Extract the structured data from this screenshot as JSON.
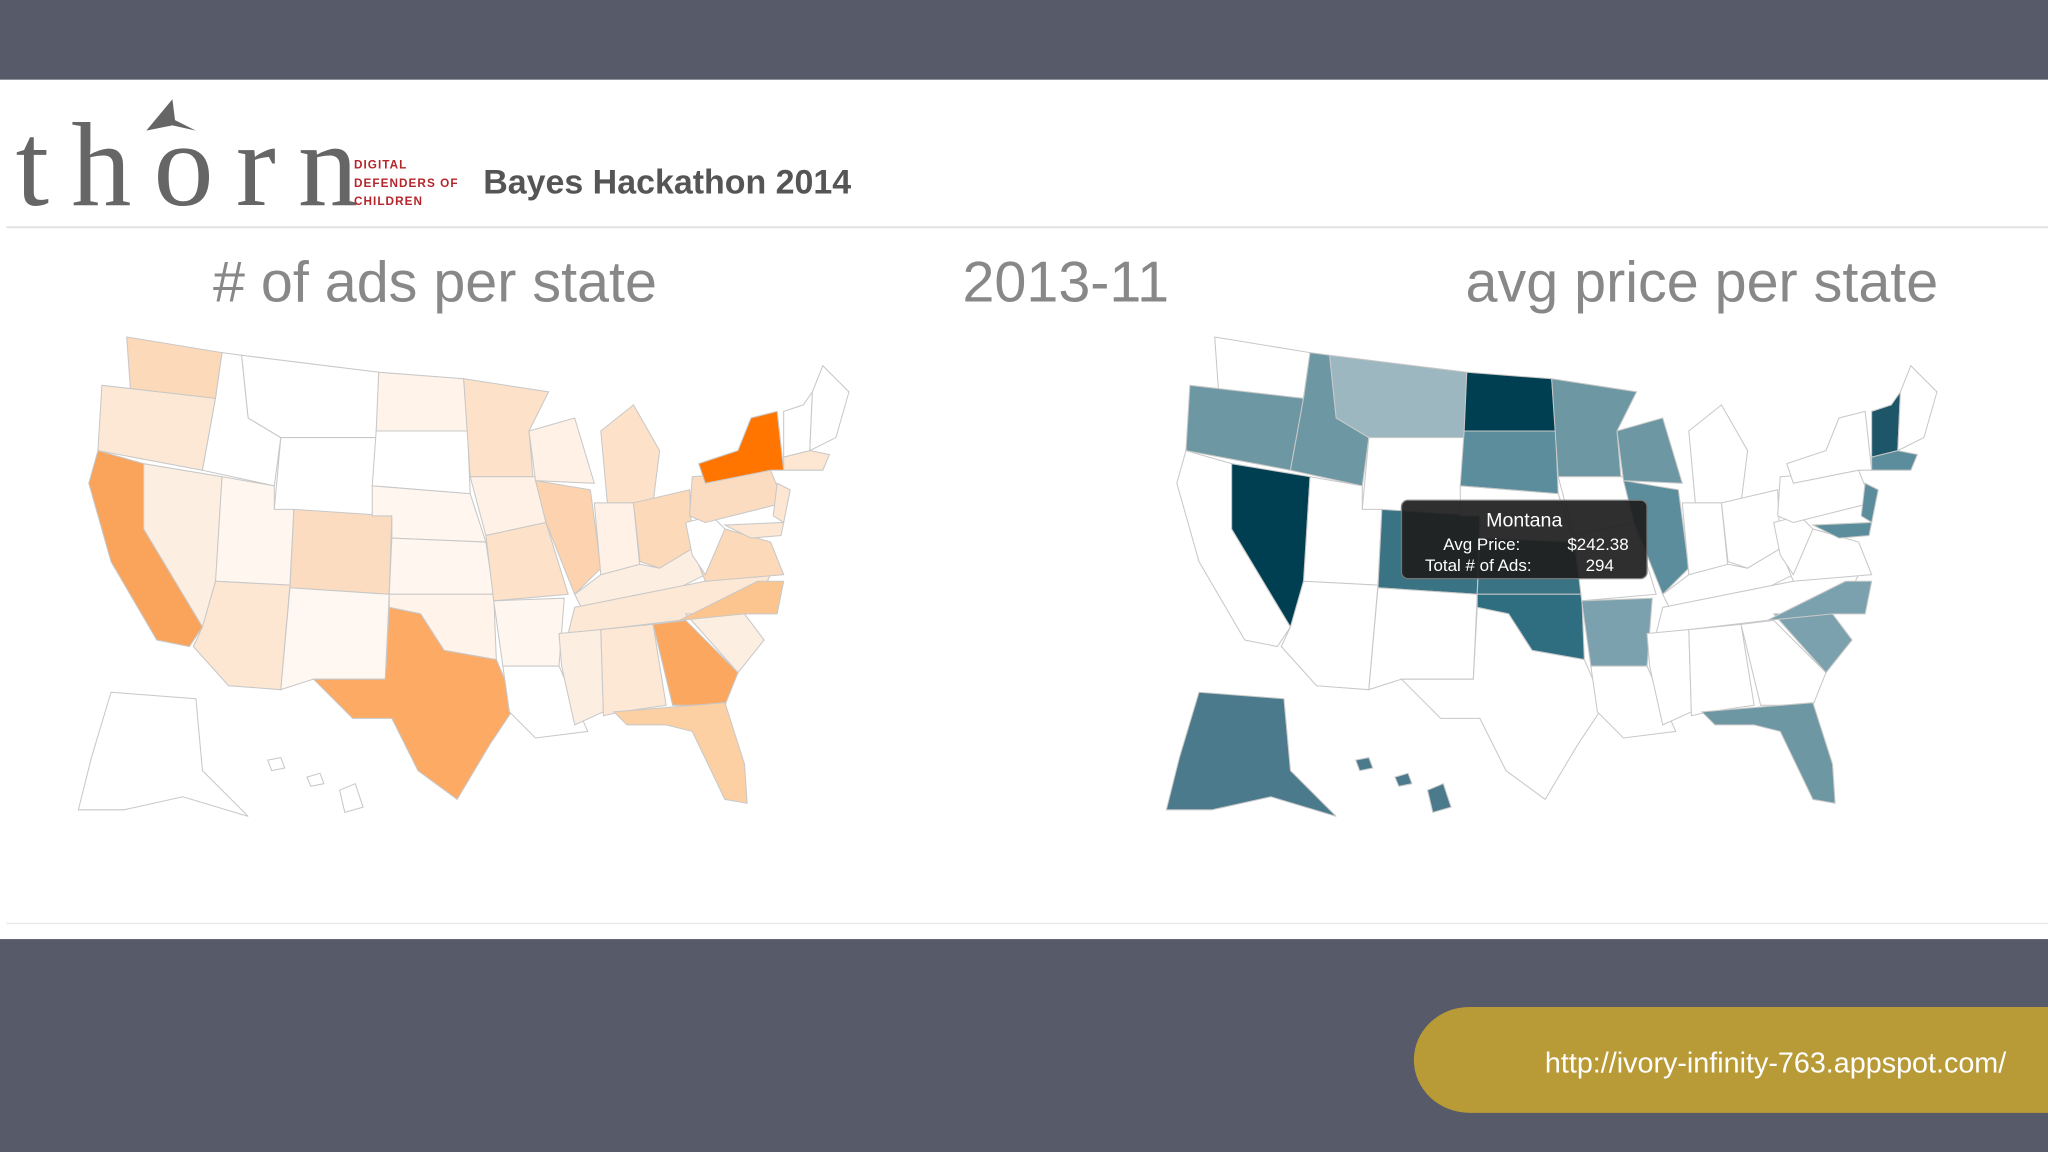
{
  "header": {
    "logo": "thorn",
    "tagline": [
      "DIGITAL",
      "DEFENDERS OF",
      "CHILDREN"
    ],
    "title": "Bayes Hackathon 2014"
  },
  "maps": {
    "left_title": "# of ads per state",
    "period": "2013-11",
    "right_title": "avg price per state"
  },
  "tooltip": {
    "state": "Montana",
    "rows": [
      [
        "Avg Price:",
        "$242.38"
      ],
      [
        "Total # of Ads:",
        "294"
      ]
    ]
  },
  "footer": {
    "url": "http://ivory-infinity-763.appspot.com/"
  }
}
